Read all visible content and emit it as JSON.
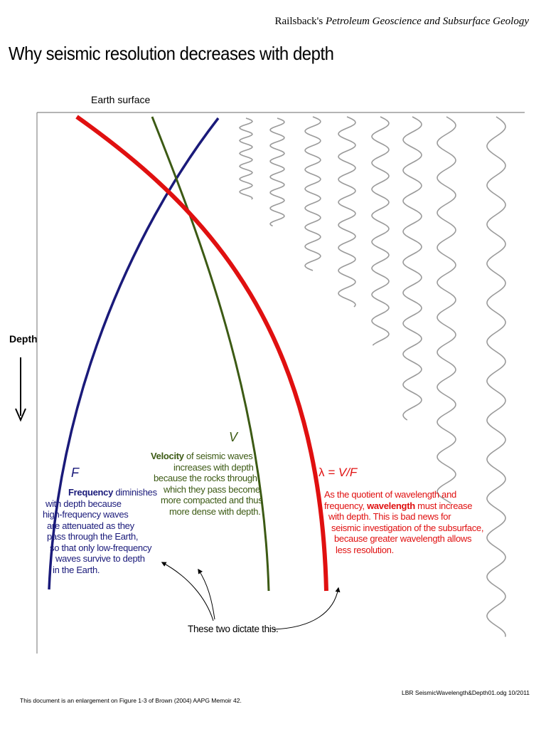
{
  "header": {
    "author": "Railsback's",
    "book": "Petroleum Geoscience and Subsurface Geology"
  },
  "title": "Why seismic resolution decreases with depth",
  "surface_label": "Earth surface",
  "depth_label": "Depth",
  "colors": {
    "frequency": "#1a1a7a",
    "velocity": "#3c5a14",
    "wavelength": "#e01010",
    "waves": "#9a9a9a"
  },
  "frequency": {
    "symbol": "F",
    "bold": "Frequency",
    "lines": [
      " diminishes",
      "with depth because",
      "high-frequency waves",
      "are attenuated as they",
      "pass through the Earth,",
      "so that only low-frequency",
      "waves survive to depth",
      "in the Earth."
    ]
  },
  "velocity": {
    "symbol": "V",
    "bold": "Velocity",
    "lines": [
      " of seismic waves",
      "increases with depth",
      "because the rocks through",
      "which they pass become",
      "more compacted and thus",
      "more dense with depth."
    ]
  },
  "wavelength": {
    "symbol_lambda": "λ",
    "symbol_rest": " = V/F",
    "line1": "As the quotient of wavelength and",
    "line2_pre": "frequency, ",
    "line2_bold": "wavelength",
    "line2_post": " must increase",
    "lines": [
      "with depth.  This is bad news for",
      "seismic investigation of the subsurface,",
      "because greater wavelength allows",
      "less resolution."
    ]
  },
  "dictate_label": "These two dictate this.",
  "footer": {
    "left": "This document is an enlargement on Figure 1-3 of Brown (2004) AAPG Memoir 42.",
    "right": "LBR  SeismicWavelength&Depth01.odg  10/2011"
  }
}
